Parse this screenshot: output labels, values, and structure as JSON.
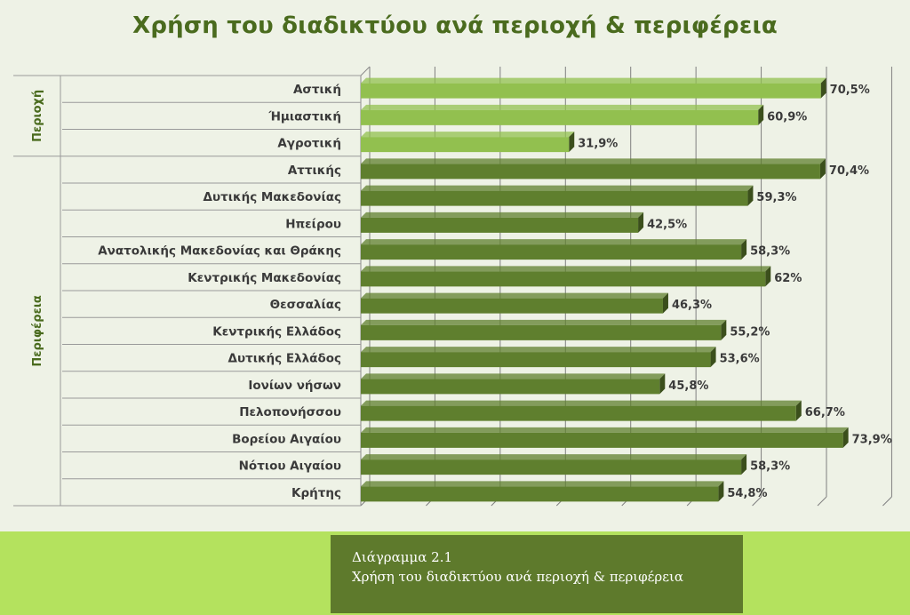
{
  "chart_data": {
    "type": "bar",
    "orientation": "horizontal",
    "title": "Χρήση του διαδικτύου ανά περιοχή & περιφέρεια",
    "xlim": [
      0,
      80
    ],
    "groups": [
      {
        "name": "Περιοχή",
        "categories": [
          "Αστική",
          "Ήμιαστική",
          "Αγροτική"
        ]
      },
      {
        "name": "Περιφέρεια",
        "categories": [
          "Αττικής",
          "Δυτικής Μακεδονίας",
          "Ηπείρου",
          "Ανατολικής Μακεδονίας και Θράκης",
          "Κεντρικής Μακεδονίας",
          "Θεσσαλίας",
          "Κεντρικής Ελλάδος",
          "Δυτικής Ελλάδος",
          "Ιονίων νήσων",
          "Πελοπονήσσου",
          "Βορείου Αιγαίου",
          "Νότιου Αιγαίου",
          "Κρήτης"
        ]
      }
    ],
    "categories": [
      "Αστική",
      "Ήμιαστική",
      "Αγροτική",
      "Αττικής",
      "Δυτικής Μακεδονίας",
      "Ηπείρου",
      "Ανατολικής Μακεδονίας και Θράκης",
      "Κεντρικής Μακεδονίας",
      "Θεσσαλίας",
      "Κεντρικής Ελλάδος",
      "Δυτικής Ελλάδος",
      "Ιονίων νήσων",
      "Πελοπονήσσου",
      "Βορείου Αιγαίου",
      "Νότιου Αιγαίου",
      "Κρήτης"
    ],
    "values": [
      70.5,
      60.9,
      31.9,
      70.4,
      59.3,
      42.5,
      58.3,
      62,
      46.3,
      55.2,
      53.6,
      45.8,
      66.7,
      73.9,
      58.3,
      54.8
    ],
    "value_labels": [
      "70,5%",
      "60,9%",
      "31,9%",
      "70,4%",
      "59,3%",
      "42,5%",
      "58,3%",
      "62%",
      "46,3%",
      "55,2%",
      "53,6%",
      "45,8%",
      "66,7%",
      "73,9%",
      "58,3%",
      "54,8%"
    ],
    "colors": {
      "area_bar": "#92c04f",
      "region_bar": "#5f7f2e",
      "gridline": "#7f7f7f",
      "title": "#4a6b1e"
    }
  },
  "caption": {
    "line1": "Διάγραμμα 2.1",
    "line2": "Χρήση του διαδικτύου ανά περιοχή & περιφέρεια"
  }
}
